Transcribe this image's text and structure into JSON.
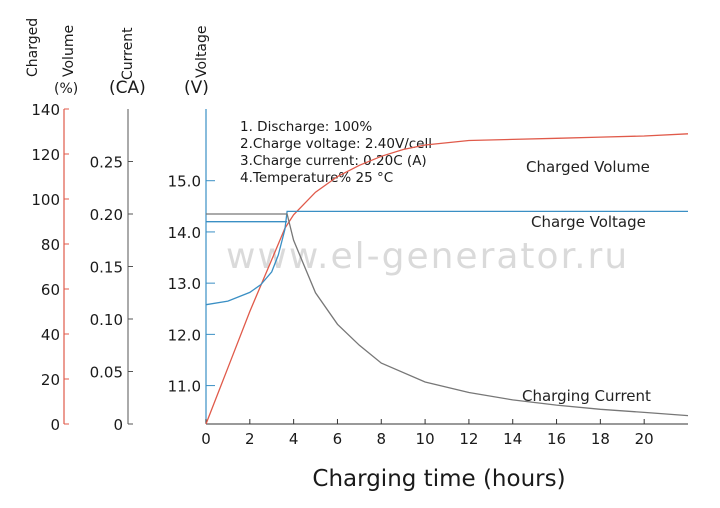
{
  "chart_data": {
    "type": "line",
    "xlabel": "Charging time (hours)",
    "x_ticks": [
      0,
      2,
      4,
      6,
      8,
      10,
      12,
      14,
      16,
      18,
      20
    ],
    "xlim": [
      0,
      22
    ],
    "axes": {
      "charged_volume": {
        "title": [
          "Charged",
          "Volume",
          "(%)"
        ],
        "ticks": [
          0,
          20,
          40,
          60,
          80,
          100,
          120,
          140
        ],
        "ylim": [
          0,
          140
        ],
        "color": "#e05a4a"
      },
      "current": {
        "title": [
          "Current",
          "(CA)"
        ],
        "ticks": [
          "0",
          "0.05",
          "0.10",
          "0.15",
          "0.20",
          "0.25"
        ],
        "tick_values": [
          0,
          0.05,
          0.1,
          0.15,
          0.2,
          0.25
        ],
        "ylim": [
          0,
          0.3
        ]
      },
      "voltage": {
        "title": [
          "Voltage",
          "(V)"
        ],
        "ticks": [
          "11.0",
          "12.0",
          "13.0",
          "14.0",
          "15.0"
        ],
        "tick_values": [
          11.0,
          12.0,
          13.0,
          14.0,
          15.0
        ],
        "ylim": [
          10.25,
          16.4
        ],
        "color": "#3a8fc4"
      }
    },
    "notes": [
      "1. Discharge: 100%",
      "2.Charge voltage: 2.40V/cell",
      "3.Charge current: 0.20C (A)",
      "4.Temperature% 25 °C"
    ],
    "watermark": "www.el-generator.ru",
    "series": [
      {
        "name": "Charged Volume",
        "axis": "charged_volume",
        "color": "#e05a4a",
        "x": [
          0,
          1,
          2,
          3,
          3.6,
          4,
          5,
          6,
          7,
          8,
          9,
          10,
          12,
          14,
          16,
          18,
          20,
          22
        ],
        "y": [
          0,
          25,
          50,
          73,
          87,
          93,
          103,
          110,
          115,
          119,
          122,
          124,
          126,
          126.5,
          127,
          127.5,
          128,
          129
        ]
      },
      {
        "name": "Charge Voltage",
        "axis": "voltage",
        "color": "#3a8fc4",
        "x": [
          0,
          1,
          2,
          2.5,
          3,
          3.3,
          3.6,
          3.7,
          22
        ],
        "y": [
          12.58,
          12.65,
          12.82,
          12.97,
          13.22,
          13.55,
          14.05,
          14.4,
          14.4
        ]
      },
      {
        "name": "Charging Current",
        "axis": "current",
        "color": "#777777",
        "x": [
          0,
          3.7,
          4,
          5,
          6,
          7,
          8,
          10,
          12,
          14,
          16,
          18,
          20,
          22
        ],
        "y": [
          0.2,
          0.2,
          0.175,
          0.125,
          0.095,
          0.075,
          0.058,
          0.04,
          0.03,
          0.023,
          0.018,
          0.014,
          0.011,
          0.008
        ]
      }
    ],
    "step_line": {
      "name": "Charge Voltage plateau",
      "axis": "voltage",
      "x": [
        0,
        3.7
      ],
      "y": [
        14.2,
        14.2
      ]
    }
  }
}
